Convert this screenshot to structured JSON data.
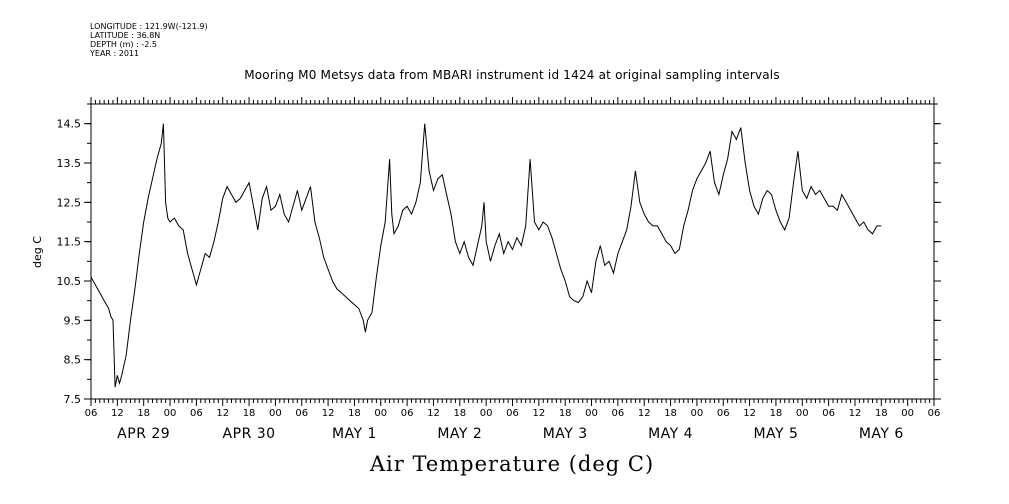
{
  "header": {
    "meta_lines": [
      "LONGITUDE : 121.9W(-121.9)",
      "LATITUDE : 36.8N",
      "DEPTH (m) : -2.5",
      "YEAR : 2011"
    ]
  },
  "chart_data": {
    "type": "line",
    "title": "Mooring M0 Metsys data from MBARI instrument id 1424 at original sampling intervals",
    "xlabel": "Air Temperature (deg C)",
    "ylabel": "deg C",
    "ylim": [
      7.5,
      15.0
    ],
    "yticks": [
      7.5,
      8.5,
      9.5,
      10.5,
      11.5,
      12.5,
      13.5,
      14.5
    ],
    "ytick_labels": [
      "7.5",
      "8.5",
      "9.5",
      "10.5",
      "11.5",
      "12.5",
      "13.5",
      "14.5"
    ],
    "xlim_hours": [
      0,
      192
    ],
    "x_start": "2011-04-28T06:00",
    "xtick_labels": [
      "06",
      "12",
      "18",
      "00",
      "06",
      "12",
      "18",
      "00",
      "06",
      "12",
      "18",
      "00",
      "06",
      "12",
      "18",
      "00",
      "06",
      "12",
      "18",
      "00",
      "06",
      "12",
      "18",
      "00",
      "06",
      "12",
      "18",
      "00",
      "06",
      "12",
      "18",
      "00",
      "06"
    ],
    "date_labels": [
      {
        "label": "APR 29"
      },
      {
        "label": "APR 30"
      },
      {
        "label": "MAY  1"
      },
      {
        "label": "MAY  2"
      },
      {
        "label": "MAY  3"
      },
      {
        "label": "MAY  4"
      },
      {
        "label": "MAY  5"
      },
      {
        "label": "MAY  6"
      }
    ],
    "grid": false,
    "series": [
      {
        "color": "#000000",
        "points": [
          [
            0,
            10.6
          ],
          [
            1,
            10.4
          ],
          [
            2,
            10.2
          ],
          [
            3,
            10.0
          ],
          [
            4,
            9.8
          ],
          [
            4.5,
            9.6
          ],
          [
            5,
            9.5
          ],
          [
            5.5,
            7.8
          ],
          [
            6,
            8.1
          ],
          [
            6.5,
            7.9
          ],
          [
            7,
            8.1
          ],
          [
            8,
            8.6
          ],
          [
            9,
            9.5
          ],
          [
            10,
            10.3
          ],
          [
            11,
            11.2
          ],
          [
            12,
            12.0
          ],
          [
            13,
            12.6
          ],
          [
            14,
            13.1
          ],
          [
            15,
            13.6
          ],
          [
            16,
            14.0
          ],
          [
            16.5,
            14.5
          ],
          [
            17,
            12.5
          ],
          [
            17.5,
            12.1
          ],
          [
            18,
            12.0
          ],
          [
            19,
            12.1
          ],
          [
            20,
            11.9
          ],
          [
            21,
            11.8
          ],
          [
            22,
            11.2
          ],
          [
            23,
            10.8
          ],
          [
            24,
            10.4
          ],
          [
            25,
            10.8
          ],
          [
            26,
            11.2
          ],
          [
            27,
            11.1
          ],
          [
            28,
            11.5
          ],
          [
            29,
            12.0
          ],
          [
            30,
            12.6
          ],
          [
            31,
            12.9
          ],
          [
            32,
            12.7
          ],
          [
            33,
            12.5
          ],
          [
            34,
            12.6
          ],
          [
            35,
            12.8
          ],
          [
            36,
            13.0
          ],
          [
            37,
            12.4
          ],
          [
            38,
            11.8
          ],
          [
            39,
            12.6
          ],
          [
            40,
            12.9
          ],
          [
            41,
            12.3
          ],
          [
            42,
            12.4
          ],
          [
            43,
            12.7
          ],
          [
            44,
            12.2
          ],
          [
            45,
            12.0
          ],
          [
            46,
            12.4
          ],
          [
            47,
            12.8
          ],
          [
            48,
            12.3
          ],
          [
            49,
            12.6
          ],
          [
            50,
            12.9
          ],
          [
            51,
            12.0
          ],
          [
            52,
            11.6
          ],
          [
            53,
            11.1
          ],
          [
            54,
            10.8
          ],
          [
            55,
            10.5
          ],
          [
            56,
            10.3
          ],
          [
            57,
            10.2
          ],
          [
            58,
            10.1
          ],
          [
            59,
            10.0
          ],
          [
            60,
            9.9
          ],
          [
            61,
            9.8
          ],
          [
            62,
            9.5
          ],
          [
            62.5,
            9.2
          ],
          [
            63,
            9.5
          ],
          [
            64,
            9.7
          ],
          [
            65,
            10.6
          ],
          [
            66,
            11.4
          ],
          [
            67,
            12.0
          ],
          [
            68,
            13.6
          ],
          [
            68.5,
            12.2
          ],
          [
            69,
            11.7
          ],
          [
            70,
            11.9
          ],
          [
            71,
            12.3
          ],
          [
            72,
            12.4
          ],
          [
            73,
            12.2
          ],
          [
            74,
            12.5
          ],
          [
            75,
            13.0
          ],
          [
            76,
            14.5
          ],
          [
            77,
            13.3
          ],
          [
            78,
            12.8
          ],
          [
            79,
            13.1
          ],
          [
            80,
            13.2
          ],
          [
            81,
            12.7
          ],
          [
            82,
            12.2
          ],
          [
            83,
            11.5
          ],
          [
            84,
            11.2
          ],
          [
            85,
            11.5
          ],
          [
            86,
            11.1
          ],
          [
            87,
            10.9
          ],
          [
            88,
            11.4
          ],
          [
            89,
            11.9
          ],
          [
            89.5,
            12.5
          ],
          [
            90,
            11.5
          ],
          [
            91,
            11.0
          ],
          [
            92,
            11.4
          ],
          [
            93,
            11.7
          ],
          [
            94,
            11.2
          ],
          [
            95,
            11.5
          ],
          [
            96,
            11.3
          ],
          [
            97,
            11.6
          ],
          [
            98,
            11.4
          ],
          [
            99,
            11.9
          ],
          [
            100,
            13.6
          ],
          [
            101,
            12.0
          ],
          [
            102,
            11.8
          ],
          [
            103,
            12.0
          ],
          [
            104,
            11.9
          ],
          [
            105,
            11.6
          ],
          [
            106,
            11.2
          ],
          [
            107,
            10.8
          ],
          [
            108,
            10.5
          ],
          [
            109,
            10.1
          ],
          [
            110,
            10.0
          ],
          [
            111,
            9.95
          ],
          [
            112,
            10.1
          ],
          [
            113,
            10.5
          ],
          [
            114,
            10.2
          ],
          [
            115,
            11.0
          ],
          [
            116,
            11.4
          ],
          [
            117,
            10.9
          ],
          [
            118,
            11.0
          ],
          [
            119,
            10.7
          ],
          [
            120,
            11.2
          ],
          [
            121,
            11.5
          ],
          [
            122,
            11.8
          ],
          [
            123,
            12.4
          ],
          [
            124,
            13.3
          ],
          [
            125,
            12.5
          ],
          [
            126,
            12.2
          ],
          [
            127,
            12.0
          ],
          [
            128,
            11.9
          ],
          [
            129,
            11.9
          ],
          [
            130,
            11.7
          ],
          [
            131,
            11.5
          ],
          [
            132,
            11.4
          ],
          [
            133,
            11.2
          ],
          [
            134,
            11.3
          ],
          [
            135,
            11.9
          ],
          [
            136,
            12.3
          ],
          [
            137,
            12.8
          ],
          [
            138,
            13.1
          ],
          [
            139,
            13.3
          ],
          [
            140,
            13.5
          ],
          [
            141,
            13.8
          ],
          [
            142,
            13.0
          ],
          [
            143,
            12.7
          ],
          [
            144,
            13.2
          ],
          [
            145,
            13.6
          ],
          [
            146,
            14.3
          ],
          [
            147,
            14.1
          ],
          [
            148,
            14.4
          ],
          [
            149,
            13.5
          ],
          [
            150,
            12.8
          ],
          [
            151,
            12.4
          ],
          [
            152,
            12.2
          ],
          [
            153,
            12.6
          ],
          [
            154,
            12.8
          ],
          [
            155,
            12.7
          ],
          [
            156,
            12.3
          ],
          [
            157,
            12.0
          ],
          [
            158,
            11.8
          ],
          [
            159,
            12.1
          ],
          [
            160,
            13.0
          ],
          [
            161,
            13.8
          ],
          [
            162,
            12.8
          ],
          [
            163,
            12.6
          ],
          [
            164,
            12.9
          ],
          [
            165,
            12.7
          ],
          [
            166,
            12.8
          ],
          [
            167,
            12.6
          ],
          [
            168,
            12.4
          ],
          [
            169,
            12.4
          ],
          [
            170,
            12.3
          ],
          [
            171,
            12.7
          ],
          [
            172,
            12.5
          ],
          [
            173,
            12.3
          ],
          [
            174,
            12.1
          ],
          [
            175,
            11.9
          ],
          [
            176,
            12.0
          ],
          [
            177,
            11.8
          ],
          [
            178,
            11.7
          ],
          [
            179,
            11.9
          ],
          [
            180,
            11.9
          ]
        ]
      }
    ]
  }
}
